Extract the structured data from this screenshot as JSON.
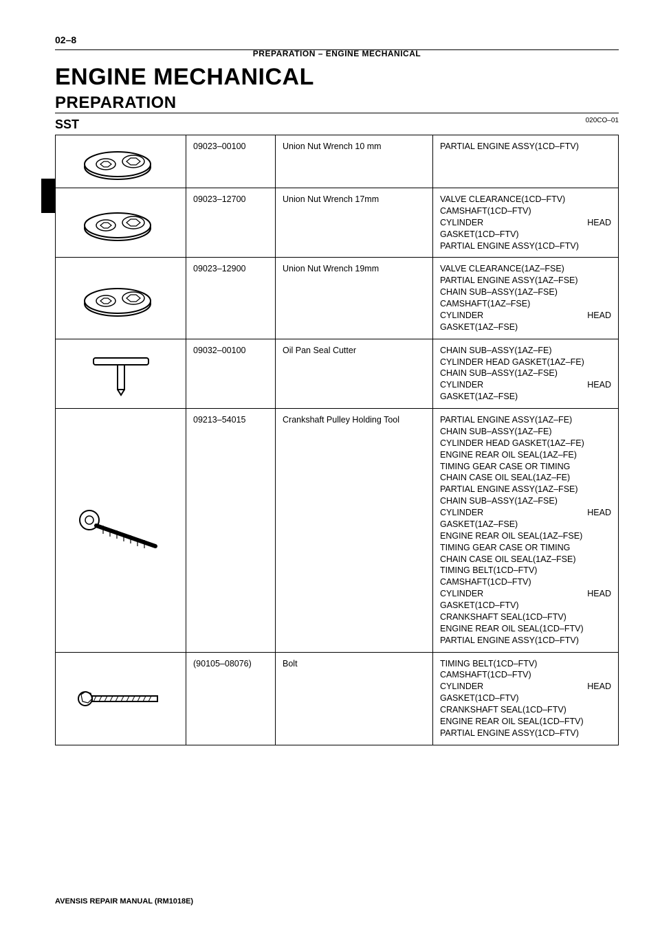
{
  "page_number": "02–8",
  "section_path": "PREPARATION    –    ENGINE MECHANICAL",
  "doc_code": "020CO–01",
  "h1": "ENGINE MECHANICAL",
  "h2": "PREPARATION",
  "h3": "SST",
  "footer": "AVENSIS REPAIR MANUAL   (RM1018E)",
  "rows": [
    {
      "pn": "09023–00100",
      "desc": "Union Nut Wrench 10 mm",
      "uses": [
        "PARTIAL ENGINE ASSY(1CD–FTV)"
      ],
      "icon": "wrench-oval"
    },
    {
      "pn": "09023–12700",
      "desc": "Union Nut Wrench 17mm",
      "uses": [
        "VALVE CLEARANCE(1CD–FTV)",
        "CAMSHAFT(1CD–FTV)",
        {
          "justify": [
            "CYLINDER",
            "HEAD"
          ]
        },
        "GASKET(1CD–FTV)",
        "PARTIAL ENGINE ASSY(1CD–FTV)"
      ],
      "icon": "wrench-oval"
    },
    {
      "pn": "09023–12900",
      "desc": "Union Nut Wrench 19mm",
      "uses": [
        "VALVE CLEARANCE(1AZ–FSE)",
        "PARTIAL ENGINE ASSY(1AZ–FSE)",
        "CHAIN SUB–ASSY(1AZ–FSE)",
        "CAMSHAFT(1AZ–FSE)",
        {
          "justify": [
            "CYLINDER",
            "HEAD"
          ]
        },
        "GASKET(1AZ–FSE)"
      ],
      "icon": "wrench-oval"
    },
    {
      "pn": "09032–00100",
      "desc": "Oil Pan Seal Cutter",
      "uses": [
        "CHAIN SUB–ASSY(1AZ–FE)",
        "CYLINDER HEAD GASKET(1AZ–FE)",
        "CHAIN SUB–ASSY(1AZ–FSE)",
        {
          "justify": [
            "CYLINDER",
            "HEAD"
          ]
        },
        "GASKET(1AZ–FSE)"
      ],
      "icon": "seal-cutter"
    },
    {
      "pn": "09213–54015",
      "desc": "Crankshaft Pulley Holding Tool",
      "uses": [
        "PARTIAL ENGINE ASSY(1AZ–FE)",
        "CHAIN SUB–ASSY(1AZ–FE)",
        "CYLINDER HEAD GASKET(1AZ–FE)",
        "ENGINE REAR OIL SEAL(1AZ–FE)",
        "TIMING GEAR CASE OR TIMING",
        "CHAIN CASE OIL SEAL(1AZ–FE)",
        "PARTIAL ENGINE ASSY(1AZ–FSE)",
        "CHAIN SUB–ASSY(1AZ–FSE)",
        {
          "justify": [
            "CYLINDER",
            "HEAD"
          ]
        },
        "GASKET(1AZ–FSE)",
        "ENGINE REAR OIL SEAL(1AZ–FSE)",
        "TIMING GEAR CASE OR TIMING",
        "CHAIN CASE OIL SEAL(1AZ–FSE)",
        "TIMING BELT(1CD–FTV)",
        "CAMSHAFT(1CD–FTV)",
        {
          "justify": [
            "CYLINDER",
            "HEAD"
          ]
        },
        "GASKET(1CD–FTV)",
        "CRANKSHAFT SEAL(1CD–FTV)",
        "ENGINE REAR OIL SEAL(1CD–FTV)",
        "PARTIAL ENGINE ASSY(1CD–FTV)"
      ],
      "icon": "pulley-tool"
    },
    {
      "pn": "(90105–08076)",
      "desc": "Bolt",
      "uses": [
        "TIMING BELT(1CD–FTV)",
        "CAMSHAFT(1CD–FTV)",
        {
          "justify": [
            "CYLINDER",
            "HEAD"
          ]
        },
        "GASKET(1CD–FTV)",
        "CRANKSHAFT SEAL(1CD–FTV)",
        "ENGINE REAR OIL SEAL(1CD–FTV)",
        "PARTIAL ENGINE ASSY(1CD–FTV)"
      ],
      "icon": "bolt"
    }
  ],
  "icons": {
    "wrench-oval": "wrench-oval",
    "seal-cutter": "seal-cutter",
    "pulley-tool": "pulley-tool",
    "bolt": "bolt"
  },
  "colors": {
    "text": "#000000",
    "bg": "#ffffff",
    "rule": "#000000"
  }
}
